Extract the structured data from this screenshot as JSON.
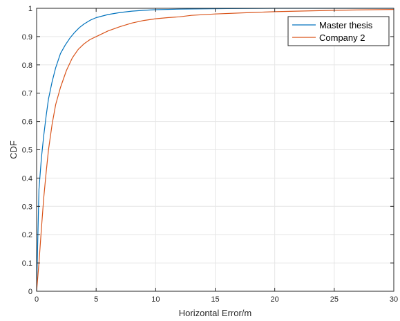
{
  "chart_data": {
    "type": "line",
    "title": "",
    "xlabel": "Horizontal Error/m",
    "ylabel": "CDF",
    "xlim": [
      0,
      30
    ],
    "ylim": [
      0,
      1
    ],
    "xticks": [
      "0",
      "5",
      "10",
      "15",
      "20",
      "25",
      "30"
    ],
    "yticks": [
      "0",
      "0.1",
      "0.2",
      "0.3",
      "0.4",
      "0.5",
      "0.6",
      "0.7",
      "0.8",
      "0.9",
      "1"
    ],
    "grid": true,
    "legend_position": "top-right",
    "series": [
      {
        "name": "Master thesis",
        "color": "#0072BD",
        "x": [
          0,
          0.05,
          0.2,
          0.4,
          0.6,
          0.8,
          1.0,
          1.3,
          1.6,
          2.0,
          2.4,
          2.8,
          3.2,
          3.6,
          4.0,
          4.5,
          5.0,
          6.0,
          7.0,
          8.0,
          9.0,
          10.0,
          12.0,
          14.0,
          16.0,
          20.0,
          30.0
        ],
        "y": [
          0,
          0.1,
          0.36,
          0.47,
          0.55,
          0.62,
          0.68,
          0.74,
          0.79,
          0.84,
          0.87,
          0.895,
          0.915,
          0.932,
          0.945,
          0.958,
          0.967,
          0.978,
          0.985,
          0.99,
          0.993,
          0.995,
          0.997,
          0.998,
          0.999,
          1.0,
          1.0
        ]
      },
      {
        "name": "Company 2",
        "color": "#D95319",
        "x": [
          0,
          0.2,
          0.4,
          0.6,
          0.8,
          1.0,
          1.3,
          1.6,
          2.0,
          2.5,
          3.0,
          3.5,
          4.0,
          4.5,
          5.0,
          6.0,
          7.0,
          8.0,
          9.0,
          10.0,
          11.0,
          12.0,
          13.0,
          15.0,
          18.0,
          20.0,
          25.0,
          30.0
        ],
        "y": [
          0,
          0.1,
          0.22,
          0.33,
          0.42,
          0.5,
          0.59,
          0.66,
          0.72,
          0.78,
          0.825,
          0.855,
          0.875,
          0.89,
          0.9,
          0.92,
          0.935,
          0.948,
          0.957,
          0.963,
          0.967,
          0.97,
          0.975,
          0.98,
          0.985,
          0.988,
          0.993,
          0.996
        ]
      }
    ]
  }
}
